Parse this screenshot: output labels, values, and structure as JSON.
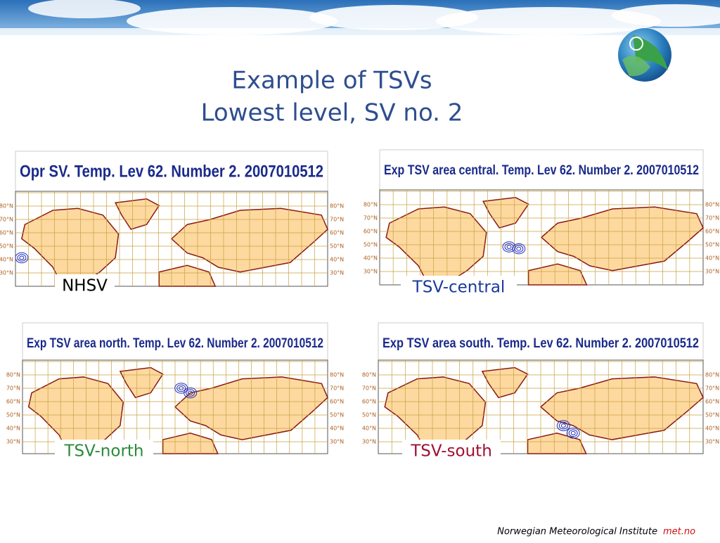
{
  "header": {
    "title_lines": [
      "Example of TSVs",
      "Lowest level, SV no. 2"
    ]
  },
  "lat_labels": [
    "80°N",
    "70°N",
    "60°N",
    "50°N",
    "40°N",
    "30°N"
  ],
  "panels": [
    {
      "title": "Opr SV. Temp. Lev 62. Number 2. 2007010512",
      "label": "NHSV"
    },
    {
      "title": "Exp TSV area central. Temp. Lev 62. Number 2. 2007010512",
      "label": "TSV-central"
    },
    {
      "title": "Exp TSV area north. Temp. Lev 62. Number 2. 2007010512",
      "label": "TSV-north"
    },
    {
      "title": "Exp TSV area south. Temp. Lev 62. Number 2. 2007010512",
      "label": "TSV-south"
    }
  ],
  "footer": {
    "institute": "Norwegian Meteorological Institute",
    "site": "met.no"
  }
}
